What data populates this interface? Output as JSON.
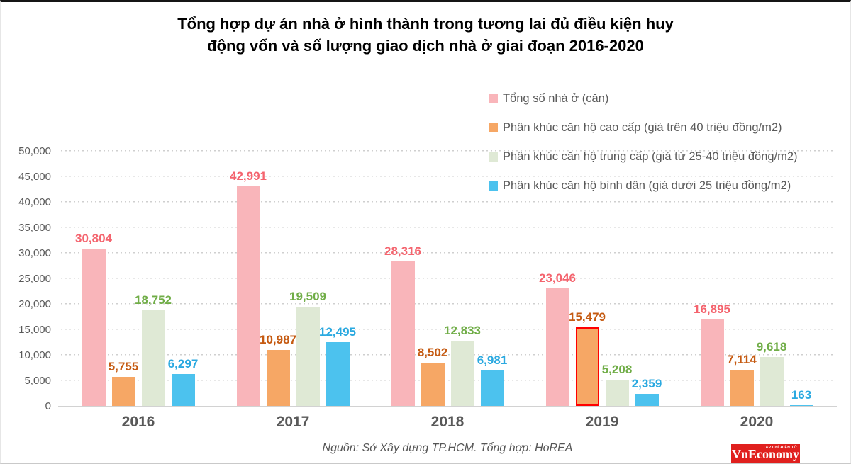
{
  "title": {
    "line1": "Tổng hợp dự án nhà ở hình thành trong tương lai đủ điều kiện huy",
    "line2": "động vốn và số lượng giao dịch nhà ở giai đoạn 2016-2020"
  },
  "source": "Nguồn: Sở Xây dựng TP.HCM. Tổng hợp: HoREA",
  "logo": {
    "text": "VnEconomy",
    "tagline": "TẠP CHÍ ĐIỆN TỬ",
    "bg_color": "#e0201e",
    "text_color": "#ffffff"
  },
  "chart_data": {
    "type": "bar",
    "title": "Tổng hợp dự án nhà ở hình thành trong tương lai đủ điều kiện huy động vốn và số lượng giao dịch nhà ở giai đoạn 2016-2020",
    "categories": [
      "2016",
      "2017",
      "2018",
      "2019",
      "2020"
    ],
    "series": [
      {
        "key": "tong-so-nha-o",
        "name": "Tổng số nhà ở (căn)",
        "color": "#f9b5ba",
        "label_color": "#f4646e",
        "values": [
          30804,
          42991,
          28316,
          23046,
          16895
        ],
        "display_values": [
          "30,804",
          "42,991",
          "28,316",
          "23,046",
          "16,895"
        ]
      },
      {
        "key": "can-ho-cao-cap",
        "name": "Phân khúc căn hộ cao cấp (giá trên 40 triệu đồng/m2)",
        "color": "#f6a765",
        "label_color": "#c55a11",
        "values": [
          5755,
          10987,
          8502,
          15479,
          7114
        ],
        "display_values": [
          "5,755",
          "10,987",
          "8,502",
          "15,479",
          "7,114"
        ]
      },
      {
        "key": "can-ho-trung-cap",
        "name": "Phân khúc căn hộ trung cấp (giá từ 25-40 triệu đồng/m2)",
        "color": "#dfe9d5",
        "label_color": "#70ad47",
        "values": [
          18752,
          19509,
          12833,
          5208,
          9618
        ],
        "display_values": [
          "18,752",
          "19,509",
          "12,833",
          "5,208",
          "9,618"
        ]
      },
      {
        "key": "can-ho-binh-dan",
        "name": "Phân khúc căn hộ bình dân (giá dưới 25 triệu đồng/m2)",
        "color": "#4cc2ee",
        "label_color": "#2aa9e0",
        "values": [
          6297,
          12495,
          6981,
          2359,
          163
        ],
        "display_values": [
          "6,297",
          "12,495",
          "6,981",
          "2,359",
          "163"
        ]
      }
    ],
    "ylim": [
      0,
      50000
    ],
    "ytick_step": 5000,
    "yticks": [
      "0",
      "5,000",
      "10,000",
      "15,000",
      "20,000",
      "25,000",
      "30,000",
      "35,000",
      "40,000",
      "45,000",
      "50,000"
    ],
    "grid": "horizontal-dotted",
    "legend_position": "top-right",
    "highlight": {
      "series_index": 1,
      "category_index": 3,
      "border_color": "#ff0000",
      "border_width": 2.5
    }
  }
}
